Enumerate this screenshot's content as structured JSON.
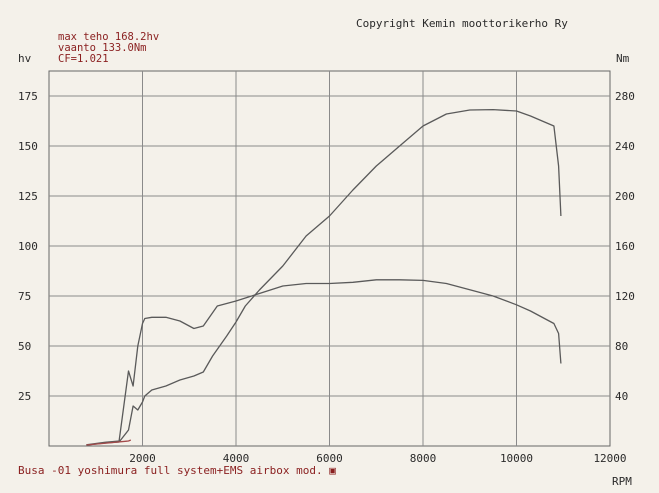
{
  "header": {
    "copyright": "Copyright Kemin moottorikerho Ry",
    "max_power": "max teho 168.2hv",
    "max_torque": "vaanto 133.0Nm",
    "cf": "CF=1.021"
  },
  "footer": {
    "caption": "Busa -01 yoshimura full system+EMS airbox mod.",
    "caption_mark": "▣"
  },
  "chart_data": {
    "type": "line",
    "xlabel": "RPM",
    "ylabel_left": "hv",
    "ylabel_right": "Nm",
    "xlim": [
      0,
      12000
    ],
    "ylim_left": [
      0,
      187.5
    ],
    "ylim_right": [
      0,
      300
    ],
    "x_ticks": [
      2000,
      4000,
      6000,
      8000,
      10000,
      12000
    ],
    "y_ticks_left": [
      25,
      50,
      75,
      100,
      125,
      150,
      175
    ],
    "y_ticks_right": [
      40,
      80,
      120,
      160,
      200,
      240,
      280
    ],
    "x_tick_labels": [
      "2000",
      "4000",
      "6000",
      "8000",
      "10000",
      "12000"
    ],
    "y_tick_labels_left": [
      "25",
      "50",
      "75",
      "100",
      "125",
      "150",
      "175"
    ],
    "y_tick_labels_right": [
      "40",
      "80",
      "120",
      "160",
      "200",
      "240",
      "280"
    ],
    "grid": true,
    "series": [
      {
        "axis": "left",
        "color": "#5a5a5a",
        "x": [
          800,
          1000,
          1200,
          1500,
          1700,
          1800,
          1900,
          2000,
          2050,
          2200,
          2500,
          2800,
          3100,
          3300,
          3500,
          3800,
          4000,
          4200,
          4500,
          5000,
          5500,
          6000,
          6500,
          7000,
          7500,
          8000,
          8500,
          9000,
          9500,
          10000,
          10300,
          10600,
          10800,
          10900,
          10950
        ],
        "y": [
          0.5,
          1,
          1.5,
          2,
          8,
          20,
          18,
          22,
          25,
          28,
          30,
          33,
          35,
          37,
          45,
          55,
          62,
          70,
          78,
          90,
          105,
          115,
          128,
          140,
          150,
          160,
          166,
          168,
          168.2,
          167.5,
          165,
          162,
          160,
          140,
          115
        ]
      },
      {
        "axis": "right",
        "color": "#5a5a5a",
        "x": [
          800,
          1000,
          1200,
          1500,
          1700,
          1800,
          1900,
          2000,
          2050,
          2200,
          2500,
          2800,
          3100,
          3300,
          3600,
          4000,
          4500,
          5000,
          5500,
          6000,
          6500,
          7000,
          7500,
          8000,
          8500,
          9000,
          9500,
          10000,
          10300,
          10600,
          10800,
          10900,
          10950
        ],
        "y": [
          1,
          2,
          3,
          4,
          60,
          48,
          80,
          98,
          102,
          103,
          103,
          100,
          94,
          96,
          112,
          116,
          122,
          128,
          130,
          130,
          131,
          133,
          133,
          132.5,
          130,
          125,
          120,
          113,
          108,
          102,
          98,
          90,
          66
        ]
      },
      {
        "axis": "left",
        "color": "#a34a4a",
        "x": [
          800,
          1700,
          1750
        ],
        "y": [
          0.5,
          2.5,
          3
        ]
      }
    ]
  }
}
